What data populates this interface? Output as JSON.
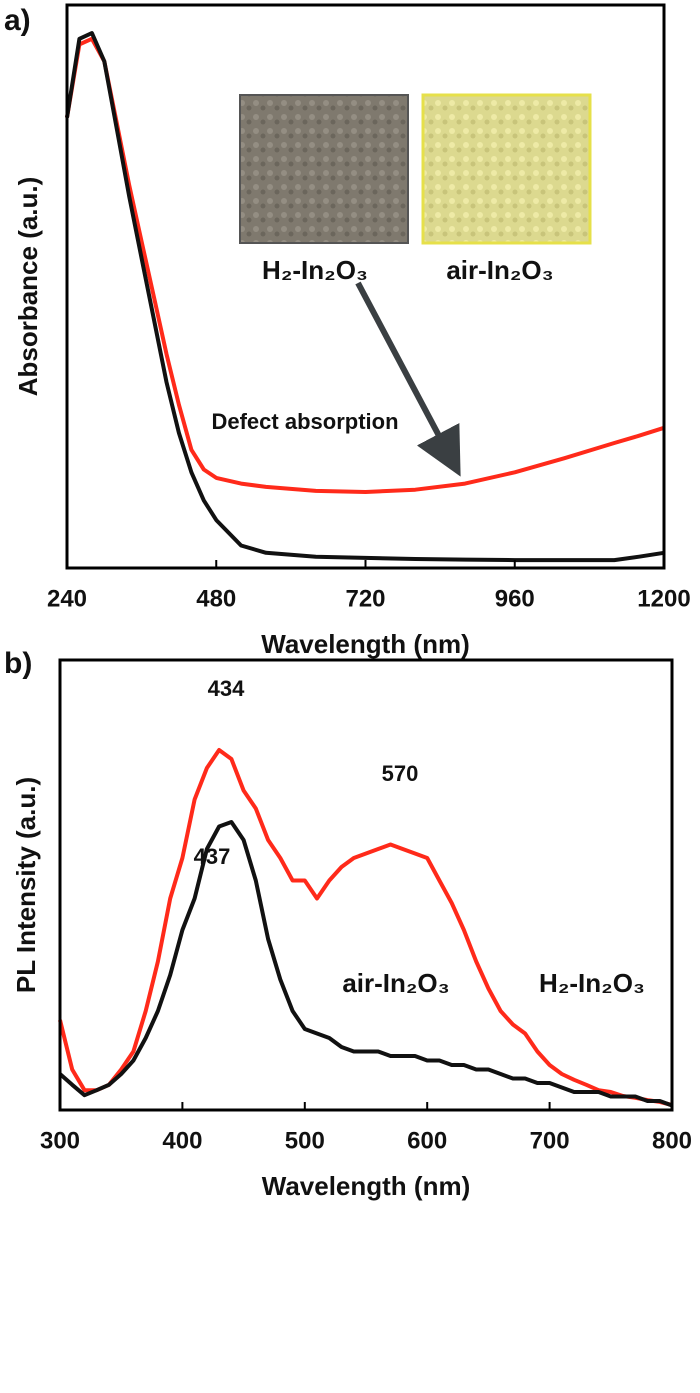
{
  "chart_data": [
    {
      "type": "line",
      "panel_label": "a)",
      "xlabel": "Wavelength (nm)",
      "ylabel": "Absorbance (a.u.)",
      "xlim": [
        240,
        1200
      ],
      "xticks": [
        240,
        480,
        720,
        960,
        1200
      ],
      "ylim": [
        0,
        1
      ],
      "x": [
        240,
        260,
        280,
        300,
        320,
        340,
        360,
        380,
        400,
        420,
        440,
        460,
        480,
        520,
        560,
        640,
        720,
        800,
        880,
        960,
        1040,
        1120,
        1160,
        1200
      ],
      "series": [
        {
          "color": "#ff2a1a",
          "values": [
            0.8,
            0.93,
            0.94,
            0.9,
            0.79,
            0.68,
            0.58,
            0.48,
            0.38,
            0.29,
            0.21,
            0.175,
            0.16,
            0.15,
            0.144,
            0.137,
            0.135,
            0.139,
            0.15,
            0.17,
            0.195,
            0.222,
            0.235,
            0.249
          ]
        },
        {
          "color": "#111111",
          "values": [
            0.8,
            0.94,
            0.95,
            0.9,
            0.78,
            0.66,
            0.55,
            0.44,
            0.33,
            0.24,
            0.17,
            0.12,
            0.085,
            0.04,
            0.027,
            0.02,
            0.018,
            0.016,
            0.015,
            0.014,
            0.014,
            0.014,
            0.02,
            0.027
          ]
        }
      ],
      "annotations": [
        "H₂-In₂O₃",
        "air-In₂O₃",
        "Defect absorption"
      ]
    },
    {
      "type": "line",
      "panel_label": "b)",
      "xlabel": "Wavelength (nm)",
      "ylabel": "PL Intensity (a.u.)",
      "xlim": [
        300,
        800
      ],
      "xticks": [
        300,
        400,
        500,
        600,
        700,
        800
      ],
      "ylim": [
        0,
        1
      ],
      "x": [
        300,
        310,
        320,
        330,
        340,
        350,
        360,
        370,
        380,
        390,
        400,
        410,
        420,
        430,
        440,
        450,
        460,
        470,
        480,
        490,
        500,
        510,
        520,
        530,
        540,
        550,
        560,
        570,
        580,
        590,
        600,
        610,
        620,
        630,
        640,
        650,
        660,
        670,
        680,
        690,
        700,
        710,
        720,
        730,
        740,
        750,
        760,
        770,
        780,
        790,
        800
      ],
      "series": [
        {
          "name": "H₂-In₂O₃",
          "color": "#ff2a1a",
          "values": [
            0.2,
            0.09,
            0.044,
            0.044,
            0.056,
            0.09,
            0.13,
            0.22,
            0.33,
            0.47,
            0.56,
            0.69,
            0.76,
            0.8,
            0.78,
            0.71,
            0.67,
            0.6,
            0.56,
            0.51,
            0.51,
            0.47,
            0.51,
            0.54,
            0.56,
            0.57,
            0.58,
            0.59,
            0.58,
            0.57,
            0.56,
            0.51,
            0.46,
            0.4,
            0.33,
            0.27,
            0.22,
            0.19,
            0.17,
            0.13,
            0.1,
            0.08,
            0.067,
            0.056,
            0.044,
            0.04,
            0.031,
            0.027,
            0.022,
            0.018,
            0.011
          ]
        },
        {
          "name": "air-In₂O₃",
          "color": "#111111",
          "values": [
            0.08,
            0.056,
            0.033,
            0.044,
            0.056,
            0.08,
            0.11,
            0.16,
            0.22,
            0.3,
            0.4,
            0.47,
            0.58,
            0.63,
            0.64,
            0.6,
            0.51,
            0.38,
            0.29,
            0.22,
            0.18,
            0.17,
            0.16,
            0.14,
            0.13,
            0.13,
            0.13,
            0.12,
            0.12,
            0.12,
            0.11,
            0.11,
            0.1,
            0.1,
            0.09,
            0.09,
            0.08,
            0.07,
            0.07,
            0.06,
            0.06,
            0.05,
            0.04,
            0.04,
            0.04,
            0.03,
            0.03,
            0.03,
            0.02,
            0.02,
            0.01
          ]
        }
      ],
      "annotations": [
        "434",
        "570",
        "437"
      ]
    }
  ]
}
